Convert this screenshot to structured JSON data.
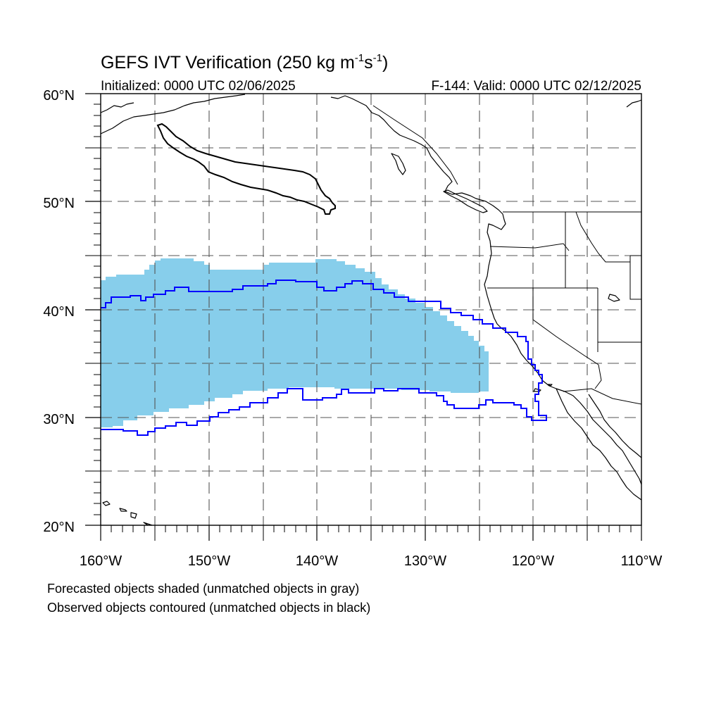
{
  "title": {
    "main": "GEFS IVT Verification (250 kg m",
    "sup1": "-1",
    "mid": "s",
    "sup2": "-1",
    "end": ")"
  },
  "subtitle": {
    "initialized": "Initialized: 0000 UTC 02/06/2025",
    "valid": "F-144: Valid: 0000 UTC 02/12/2025"
  },
  "map": {
    "lon_range": [
      -160,
      -110
    ],
    "lat_range": [
      20,
      60
    ],
    "gridlines": "dashed",
    "lon_tick_labels": [
      "160°W",
      "150°W",
      "140°W",
      "130°W",
      "120°W",
      "110°W"
    ],
    "lat_tick_labels": [
      "20°N",
      "30°N",
      "40°N",
      "50°N",
      "60°N"
    ]
  },
  "colors": {
    "forecast_matched": "#87ceeb",
    "observed_matched": "#0000ff",
    "observed_unmatched": "#000000",
    "coastline": "#000000",
    "grid": "#555555"
  },
  "objects": {
    "forecast_matched_shaded": {
      "lon_extent": [
        -160,
        -124.5
      ],
      "lat_extent": [
        29,
        45
      ]
    },
    "observed_matched_contour": {
      "lon_extent": [
        -160,
        -118
      ],
      "lat_extent": [
        28.5,
        42.8
      ]
    },
    "observed_unmatched_contour": {
      "lon_extent": [
        -155,
        -137
      ],
      "lat_extent": [
        48.8,
        57.5
      ]
    }
  },
  "legend": {
    "forecast_note": "Forecasted objects shaded (unmatched objects in gray)",
    "observed_note": "Observed objects contoured (unmatched objects in black)"
  }
}
